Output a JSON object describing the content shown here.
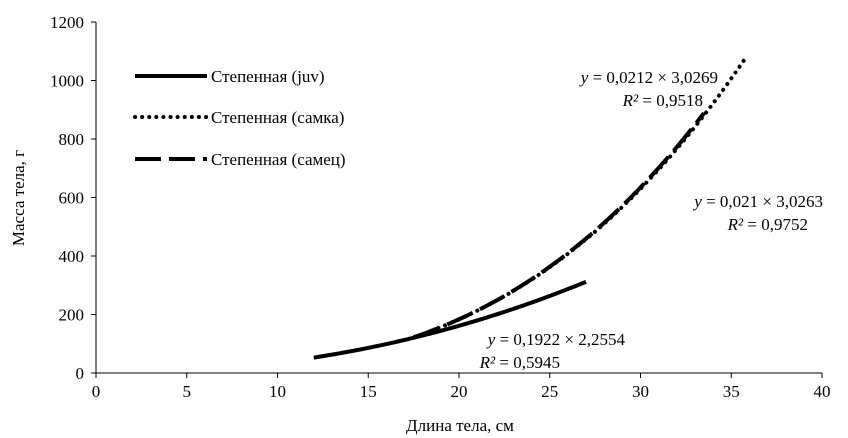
{
  "chart_data": {
    "type": "line",
    "title": "",
    "xlabel": "Длина тела, см",
    "ylabel": "Масса тела, г",
    "xlim": [
      0,
      40
    ],
    "ylim": [
      0,
      1200
    ],
    "x_ticks": [
      0,
      5,
      10,
      15,
      20,
      25,
      30,
      35,
      40
    ],
    "y_ticks": [
      0,
      200,
      400,
      600,
      800,
      1000,
      1200
    ],
    "grid": false,
    "legend_position": "top-left",
    "series": [
      {
        "name": "Степенная (juv)",
        "style": "solid",
        "fit": "power",
        "x_range": [
          12,
          27
        ],
        "x": [
          12,
          13,
          14,
          15,
          16,
          17,
          18,
          19,
          20,
          21,
          22,
          23,
          24,
          25,
          26,
          27
        ],
        "y": [
          53,
          63,
          74,
          86,
          99,
          113,
          128,
          144,
          161,
          179,
          197,
          217,
          238,
          259,
          282,
          332
        ],
        "equation": {
          "lhs": "y",
          "text": " = 0,1922 × 2,2554",
          "r2_label": "R²",
          "r2_text": " = 0,5945"
        }
      },
      {
        "name": "Степенная (самка)",
        "style": "dotted",
        "fit": "power",
        "x_range": [
          18.5,
          35.8
        ],
        "x": [
          18.5,
          20,
          22,
          24,
          26,
          28,
          30,
          32,
          34,
          35.8
        ],
        "y": [
          145,
          185,
          245,
          315,
          405,
          510,
          630,
          780,
          930,
          1063
        ],
        "equation": {
          "lhs": "y",
          "text": " = 0,0212 × 3,0269",
          "r2_label": "R²",
          "r2_text": " = 0,9518"
        }
      },
      {
        "name": "Степенная (самец)",
        "style": "dashed",
        "fit": "power",
        "x_range": [
          17.5,
          33.5
        ],
        "x": [
          17.5,
          19,
          21,
          23,
          25,
          27,
          29,
          31,
          33.5
        ],
        "y": [
          120,
          155,
          215,
          285,
          370,
          465,
          580,
          700,
          860
        ],
        "equation": {
          "lhs": "y",
          "text": " = 0,021 × 3,0263",
          "r2_label": "R²",
          "r2_text": " = 0,9752"
        }
      }
    ]
  }
}
